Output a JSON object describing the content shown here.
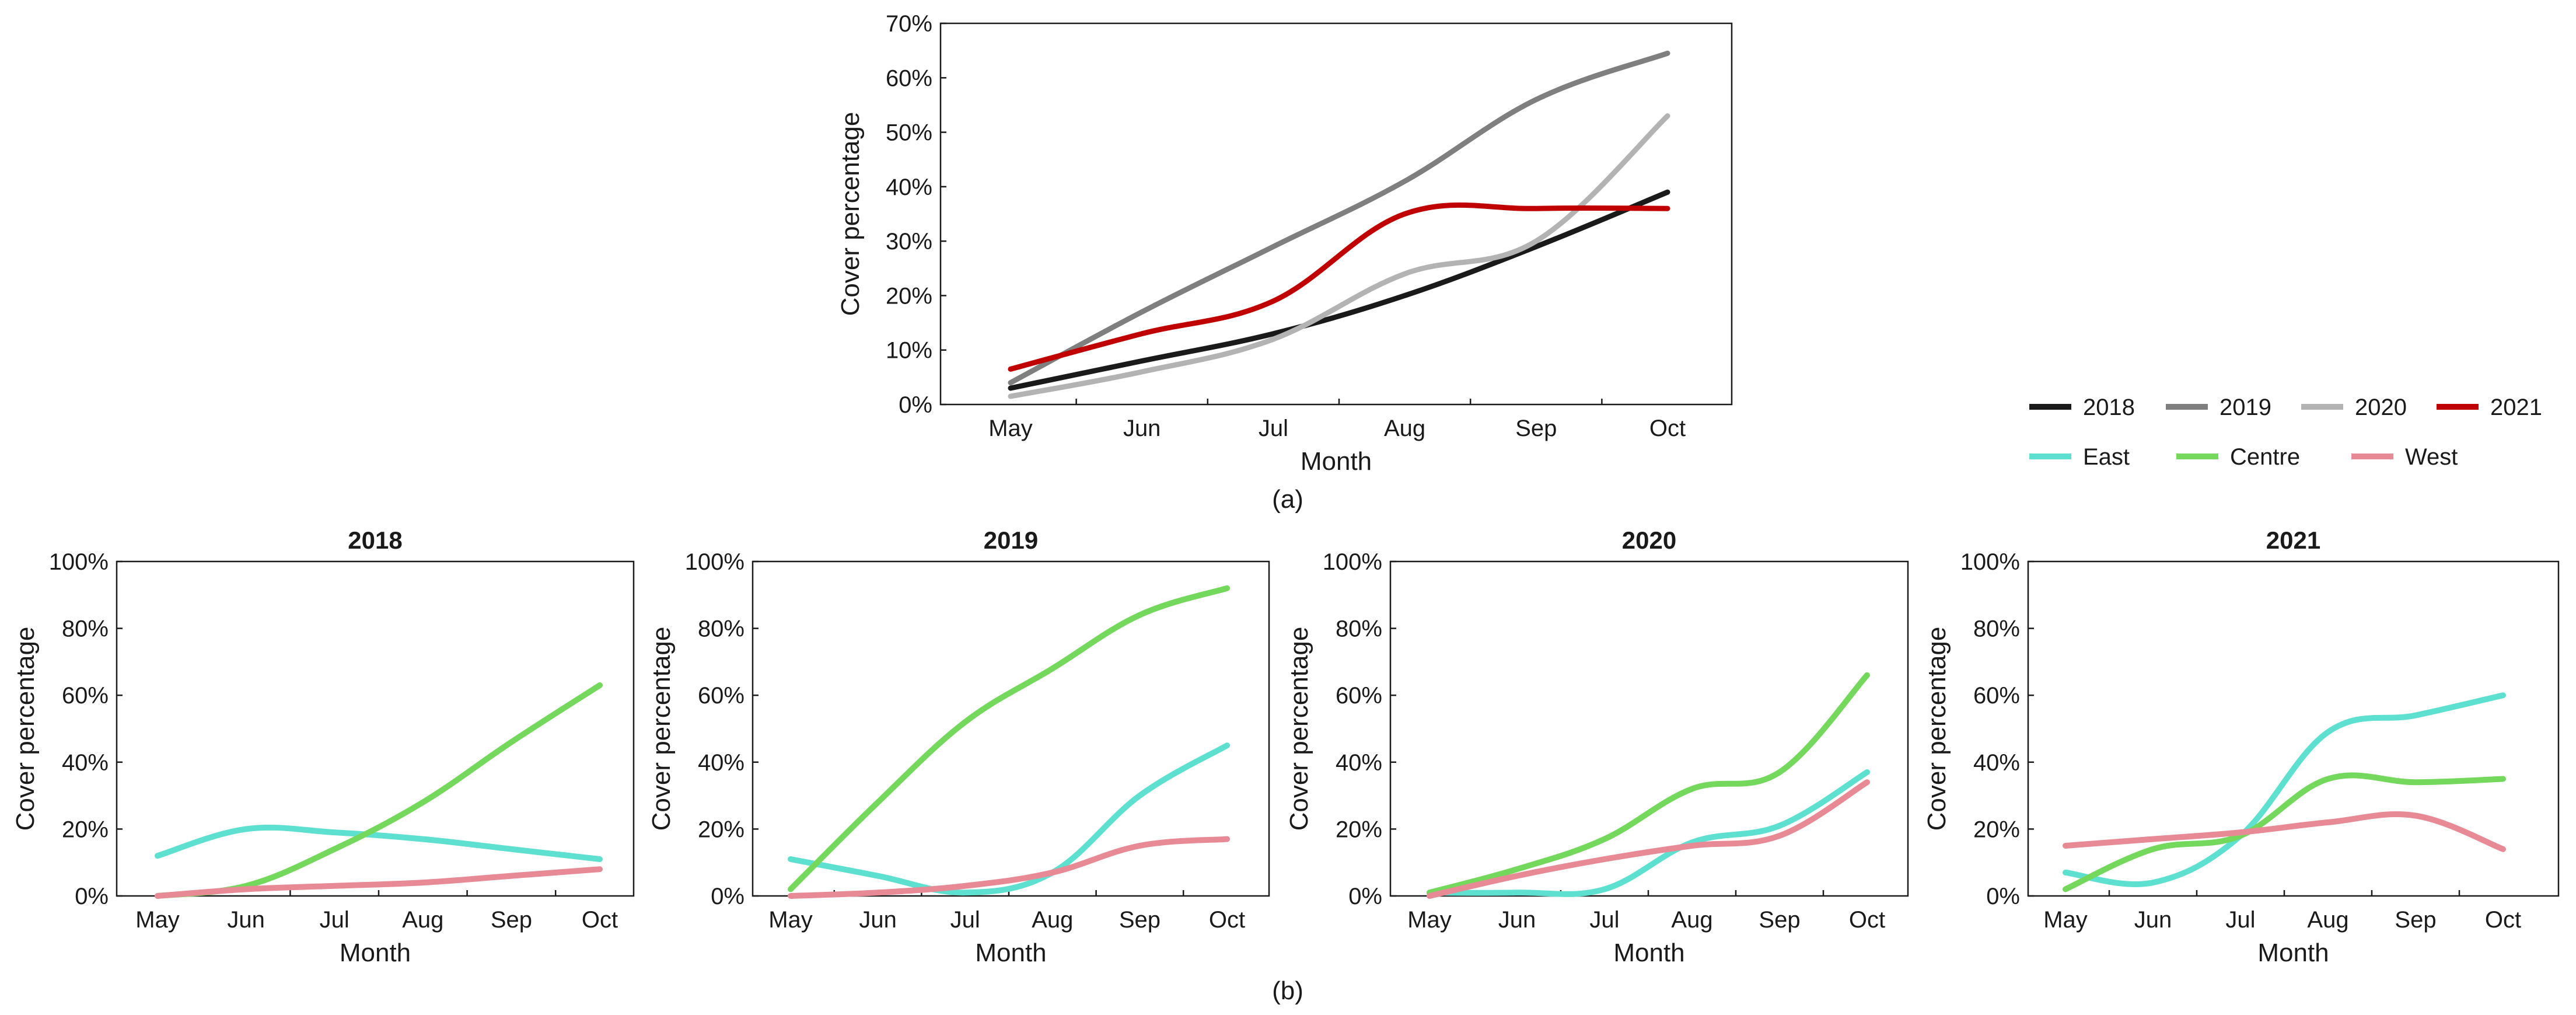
{
  "figure": {
    "caption_a": "(a)",
    "caption_b": "(b)"
  },
  "legend": {
    "years": [
      {
        "label": "2018",
        "color": "#1a1a1a"
      },
      {
        "label": "2019",
        "color": "#7f7f7f"
      },
      {
        "label": "2020",
        "color": "#b3b3b3"
      },
      {
        "label": "2021",
        "color": "#c00000"
      }
    ],
    "regions": [
      {
        "label": "East",
        "color": "#5ee0d0"
      },
      {
        "label": "Centre",
        "color": "#74d85c"
      },
      {
        "label": "West",
        "color": "#e88a96"
      }
    ]
  },
  "chart_data": [
    {
      "id": "top",
      "type": "line",
      "title": "",
      "xlabel": "Month",
      "ylabel": "Cover percentage",
      "categories": [
        "May",
        "Jun",
        "Jul",
        "Aug",
        "Sep",
        "Oct"
      ],
      "ylim": [
        0,
        70
      ],
      "yticks": [
        "0%",
        "10%",
        "20%",
        "30%",
        "40%",
        "50%",
        "60%",
        "70%"
      ],
      "series": [
        {
          "name": "2018",
          "color": "#1a1a1a",
          "values": [
            3,
            8,
            13,
            20,
            29,
            39
          ]
        },
        {
          "name": "2019",
          "color": "#7f7f7f",
          "values": [
            4,
            17,
            29,
            41,
            56,
            64.5
          ]
        },
        {
          "name": "2020",
          "color": "#b3b3b3",
          "values": [
            1.5,
            6,
            12,
            24,
            30,
            53
          ]
        },
        {
          "name": "2021",
          "color": "#c00000",
          "values": [
            6.5,
            13,
            19,
            35,
            36,
            36
          ]
        }
      ]
    },
    {
      "id": "p2018",
      "type": "line",
      "title": "2018",
      "xlabel": "Month",
      "ylabel": "Cover percentage",
      "categories": [
        "May",
        "Jun",
        "Jul",
        "Aug",
        "Sep",
        "Oct"
      ],
      "ylim": [
        0,
        100
      ],
      "yticks": [
        "0%",
        "20%",
        "40%",
        "60%",
        "80%",
        "100%"
      ],
      "series": [
        {
          "name": "East",
          "color": "#5ee0d0",
          "values": [
            12,
            20,
            19,
            17,
            14,
            11
          ]
        },
        {
          "name": "Centre",
          "color": "#74d85c",
          "values": [
            0,
            3,
            14,
            28,
            46,
            63
          ]
        },
        {
          "name": "West",
          "color": "#e88a96",
          "values": [
            0,
            2,
            3,
            4,
            6,
            8
          ]
        }
      ]
    },
    {
      "id": "p2019",
      "type": "line",
      "title": "2019",
      "xlabel": "Month",
      "ylabel": "Cover percentage",
      "categories": [
        "May",
        "Jun",
        "Jul",
        "Aug",
        "Sep",
        "Oct"
      ],
      "ylim": [
        0,
        100
      ],
      "yticks": [
        "0%",
        "20%",
        "40%",
        "60%",
        "80%",
        "100%"
      ],
      "series": [
        {
          "name": "East",
          "color": "#5ee0d0",
          "values": [
            11,
            6,
            1,
            7,
            30,
            45
          ]
        },
        {
          "name": "Centre",
          "color": "#74d85c",
          "values": [
            2,
            28,
            52,
            68,
            84,
            92
          ]
        },
        {
          "name": "West",
          "color": "#e88a96",
          "values": [
            0,
            1,
            3,
            7,
            15,
            17
          ]
        }
      ]
    },
    {
      "id": "p2020",
      "type": "line",
      "title": "2020",
      "xlabel": "Month",
      "ylabel": "Cover percentage",
      "categories": [
        "May",
        "Jun",
        "Jul",
        "Aug",
        "Sep",
        "Oct"
      ],
      "ylim": [
        0,
        100
      ],
      "yticks": [
        "0%",
        "20%",
        "40%",
        "60%",
        "80%",
        "100%"
      ],
      "series": [
        {
          "name": "East",
          "color": "#5ee0d0",
          "values": [
            1,
            1,
            2,
            16,
            21,
            37
          ]
        },
        {
          "name": "Centre",
          "color": "#74d85c",
          "values": [
            1,
            8,
            17,
            32,
            37,
            66
          ]
        },
        {
          "name": "West",
          "color": "#e88a96",
          "values": [
            0,
            6,
            11,
            15,
            18,
            34
          ]
        }
      ]
    },
    {
      "id": "p2021",
      "type": "line",
      "title": "2021",
      "xlabel": "Month",
      "ylabel": "Cover percentage",
      "categories": [
        "May",
        "Jun",
        "Jul",
        "Aug",
        "Sep",
        "Oct"
      ],
      "ylim": [
        0,
        100
      ],
      "yticks": [
        "0%",
        "20%",
        "40%",
        "60%",
        "80%",
        "100%"
      ],
      "series": [
        {
          "name": "East",
          "color": "#5ee0d0",
          "values": [
            7,
            4,
            18,
            49,
            54,
            60
          ]
        },
        {
          "name": "Centre",
          "color": "#74d85c",
          "values": [
            2,
            14,
            18,
            35,
            34,
            35
          ]
        },
        {
          "name": "West",
          "color": "#e88a96",
          "values": [
            15,
            17,
            19,
            22,
            24,
            14
          ]
        }
      ]
    }
  ]
}
